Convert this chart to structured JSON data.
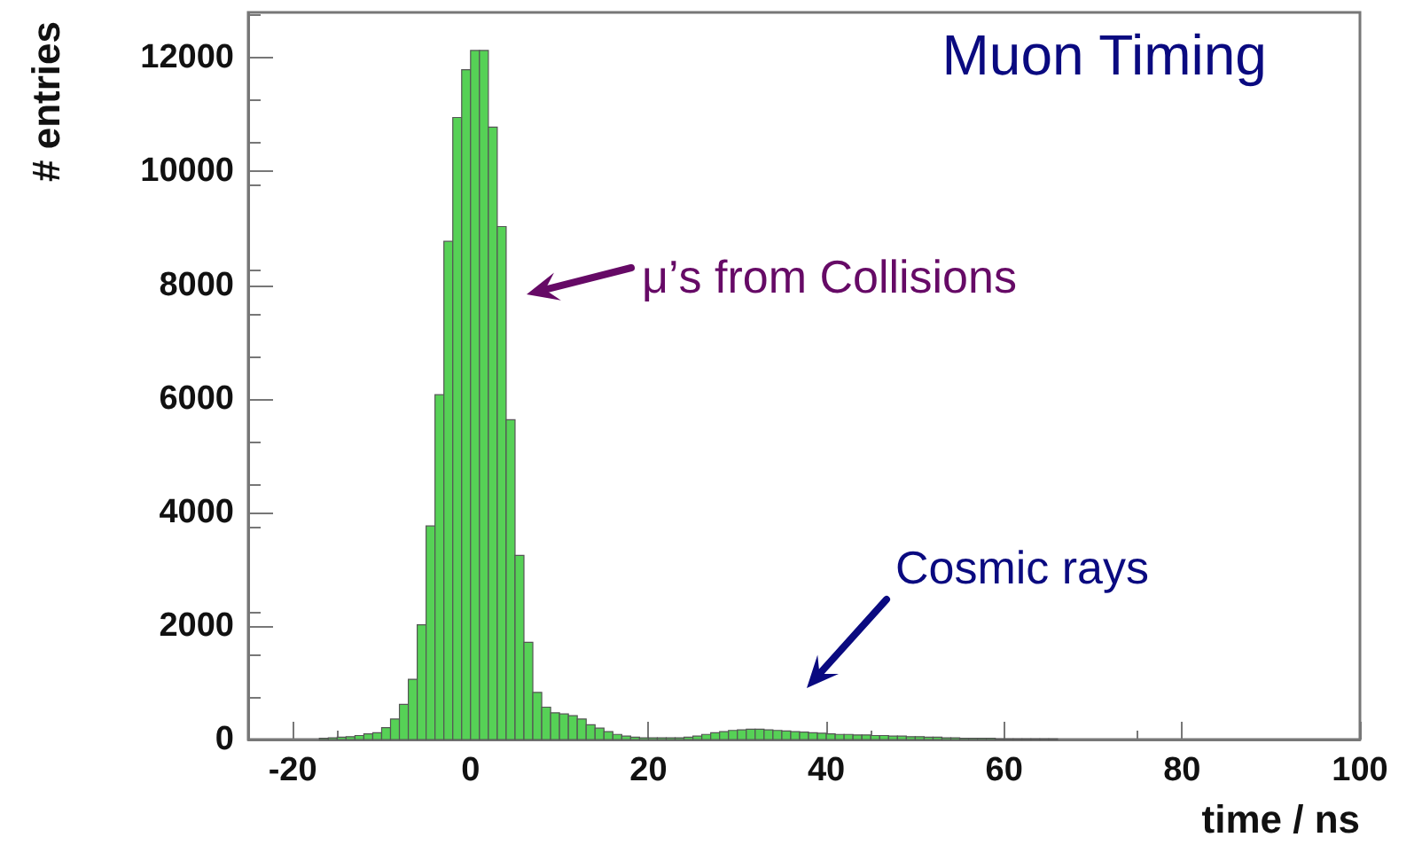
{
  "chart_data": {
    "type": "histogram",
    "title": "Muon Timing",
    "xlabel": "time / ns",
    "ylabel": "# entries",
    "color": "#56d156",
    "bins": [
      -17,
      -16,
      -15,
      -14,
      -13,
      -12,
      -11,
      -10,
      -9,
      -8,
      -7,
      -6,
      -5,
      -4,
      -3,
      -2,
      -1,
      0,
      1,
      2,
      3,
      4,
      5,
      6,
      7,
      8,
      9,
      10,
      11,
      12,
      13,
      14,
      15,
      16,
      17,
      18,
      19,
      20,
      21,
      22,
      23,
      24,
      25,
      26,
      27,
      28,
      29,
      30,
      31,
      32,
      33,
      34,
      35,
      36,
      37,
      38,
      39,
      40,
      41,
      42,
      43,
      44,
      45,
      46,
      47,
      48,
      49,
      50,
      51,
      52,
      53,
      54,
      55,
      56,
      57,
      58,
      59,
      60,
      61,
      62,
      63,
      64,
      65,
      66
    ],
    "values": [
      20,
      30,
      40,
      50,
      70,
      100,
      120,
      210,
      360,
      620,
      1060,
      2020,
      3760,
      6070,
      8770,
      10950,
      11790,
      12130,
      12130,
      10780,
      9030,
      5630,
      3240,
      1710,
      830,
      570,
      470,
      450,
      420,
      360,
      260,
      200,
      140,
      90,
      60,
      40,
      30,
      30,
      30,
      30,
      30,
      40,
      60,
      90,
      120,
      140,
      160,
      170,
      180,
      180,
      170,
      160,
      150,
      140,
      130,
      120,
      110,
      100,
      90,
      90,
      80,
      80,
      70,
      70,
      60,
      60,
      50,
      50,
      40,
      40,
      30,
      30,
      20,
      20,
      20,
      20,
      10,
      10,
      10,
      10,
      10,
      10,
      10
    ],
    "xlim": [
      -25,
      100
    ],
    "xticks": [
      -20,
      0,
      20,
      40,
      60,
      80,
      100
    ],
    "ylim": [
      0,
      12800
    ],
    "yticks": [
      0,
      2000,
      4000,
      6000,
      8000,
      10000,
      12000
    ],
    "grid": false,
    "annotations": [
      "μ’s from Collisions",
      "Cosmic rays"
    ]
  }
}
